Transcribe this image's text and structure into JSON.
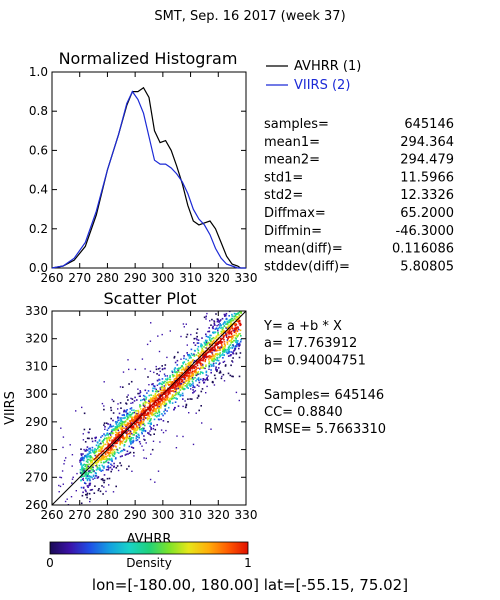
{
  "page": {
    "title": "SMT,  Sep. 16 2017 (week 37)",
    "footer": "lon=[-180.00, 180.00] lat=[-55.15, 75.02]"
  },
  "histogram": {
    "legend": [
      {
        "label": "AVHRR (1)",
        "color": "#000000"
      },
      {
        "label": "VIIRS (2)",
        "color": "#1c2ad6"
      }
    ],
    "stats": [
      {
        "label": "samples=",
        "value": "645146"
      },
      {
        "label": "mean1=",
        "value": "294.364"
      },
      {
        "label": "mean2=",
        "value": "294.479"
      },
      {
        "label": "std1=",
        "value": "11.5966"
      },
      {
        "label": "std2=",
        "value": "12.3326"
      },
      {
        "label": "Diffmax=",
        "value": "65.2000"
      },
      {
        "label": "Diffmin=",
        "value": "-46.3000"
      },
      {
        "label": "mean(diff)=",
        "value": "0.116086"
      },
      {
        "label": "stddev(diff)=",
        "value": "5.80805"
      }
    ]
  },
  "scatter": {
    "info_lines": [
      "Y= a +b * X",
      "a= 17.763912",
      "b= 0.94004751",
      "",
      "Samples= 645146",
      "CC=  0.8840",
      "RMSE= 5.7663310"
    ]
  },
  "colorbar": {
    "label": "Density",
    "min_label": "0",
    "max_label": "1",
    "stops": [
      "#1a0a55",
      "#3b12a8",
      "#1f4fe6",
      "#149fe0",
      "#18d3c8",
      "#20d27a",
      "#7be32a",
      "#e6e61a",
      "#ffae0a",
      "#ff5a00",
      "#e01000"
    ]
  },
  "chart_data": [
    {
      "type": "line",
      "title": "Normalized Histogram",
      "xlim": [
        260,
        330
      ],
      "ylim": [
        0,
        1.0
      ],
      "xticks": [
        260,
        270,
        280,
        290,
        300,
        310,
        320,
        330
      ],
      "yticks": [
        0.0,
        0.2,
        0.4,
        0.6,
        0.8,
        1.0
      ],
      "yticklabels": [
        "0.0",
        "0.2",
        "0.4",
        "0.6",
        "0.8",
        "1.0"
      ],
      "legend": "top-right outside",
      "series": [
        {
          "name": "AVHRR (1)",
          "color": "#000000",
          "x": [
            260,
            264,
            268,
            272,
            276,
            280,
            284,
            287,
            289,
            291,
            293,
            295,
            297,
            299,
            301,
            303,
            305,
            307,
            309,
            311,
            313,
            315,
            317,
            319,
            321,
            323,
            325,
            327,
            328,
            330
          ],
          "y": [
            0.0,
            0.01,
            0.04,
            0.11,
            0.27,
            0.5,
            0.68,
            0.83,
            0.9,
            0.9,
            0.92,
            0.87,
            0.7,
            0.64,
            0.65,
            0.6,
            0.52,
            0.43,
            0.32,
            0.24,
            0.22,
            0.23,
            0.24,
            0.2,
            0.13,
            0.06,
            0.02,
            0.01,
            0.0,
            0.0
          ]
        },
        {
          "name": "VIIRS (2)",
          "color": "#1c2ad6",
          "x": [
            260,
            264,
            268,
            272,
            276,
            280,
            284,
            287,
            289,
            291,
            293,
            295,
            297,
            299,
            301,
            303,
            305,
            307,
            309,
            311,
            313,
            315,
            317,
            319,
            321,
            323,
            325,
            327,
            330
          ],
          "y": [
            0.0,
            0.01,
            0.05,
            0.13,
            0.29,
            0.5,
            0.68,
            0.84,
            0.9,
            0.86,
            0.79,
            0.67,
            0.55,
            0.53,
            0.53,
            0.51,
            0.48,
            0.44,
            0.38,
            0.3,
            0.25,
            0.22,
            0.17,
            0.1,
            0.05,
            0.02,
            0.01,
            0.0,
            0.0
          ]
        }
      ]
    },
    {
      "type": "scatter",
      "title": "Scatter Plot",
      "xlabel": "AVHRR",
      "ylabel": "VIIRS",
      "xlim": [
        260,
        330
      ],
      "ylim": [
        260,
        330
      ],
      "xticks": [
        260,
        270,
        280,
        290,
        300,
        310,
        320,
        330
      ],
      "yticks": [
        260,
        270,
        280,
        290,
        300,
        310,
        320,
        330
      ],
      "fit_line": {
        "a": 17.763912,
        "b": 0.94004751,
        "x_range": [
          275,
          322
        ]
      },
      "one_to_one_line": true,
      "samples": 645146
    }
  ]
}
